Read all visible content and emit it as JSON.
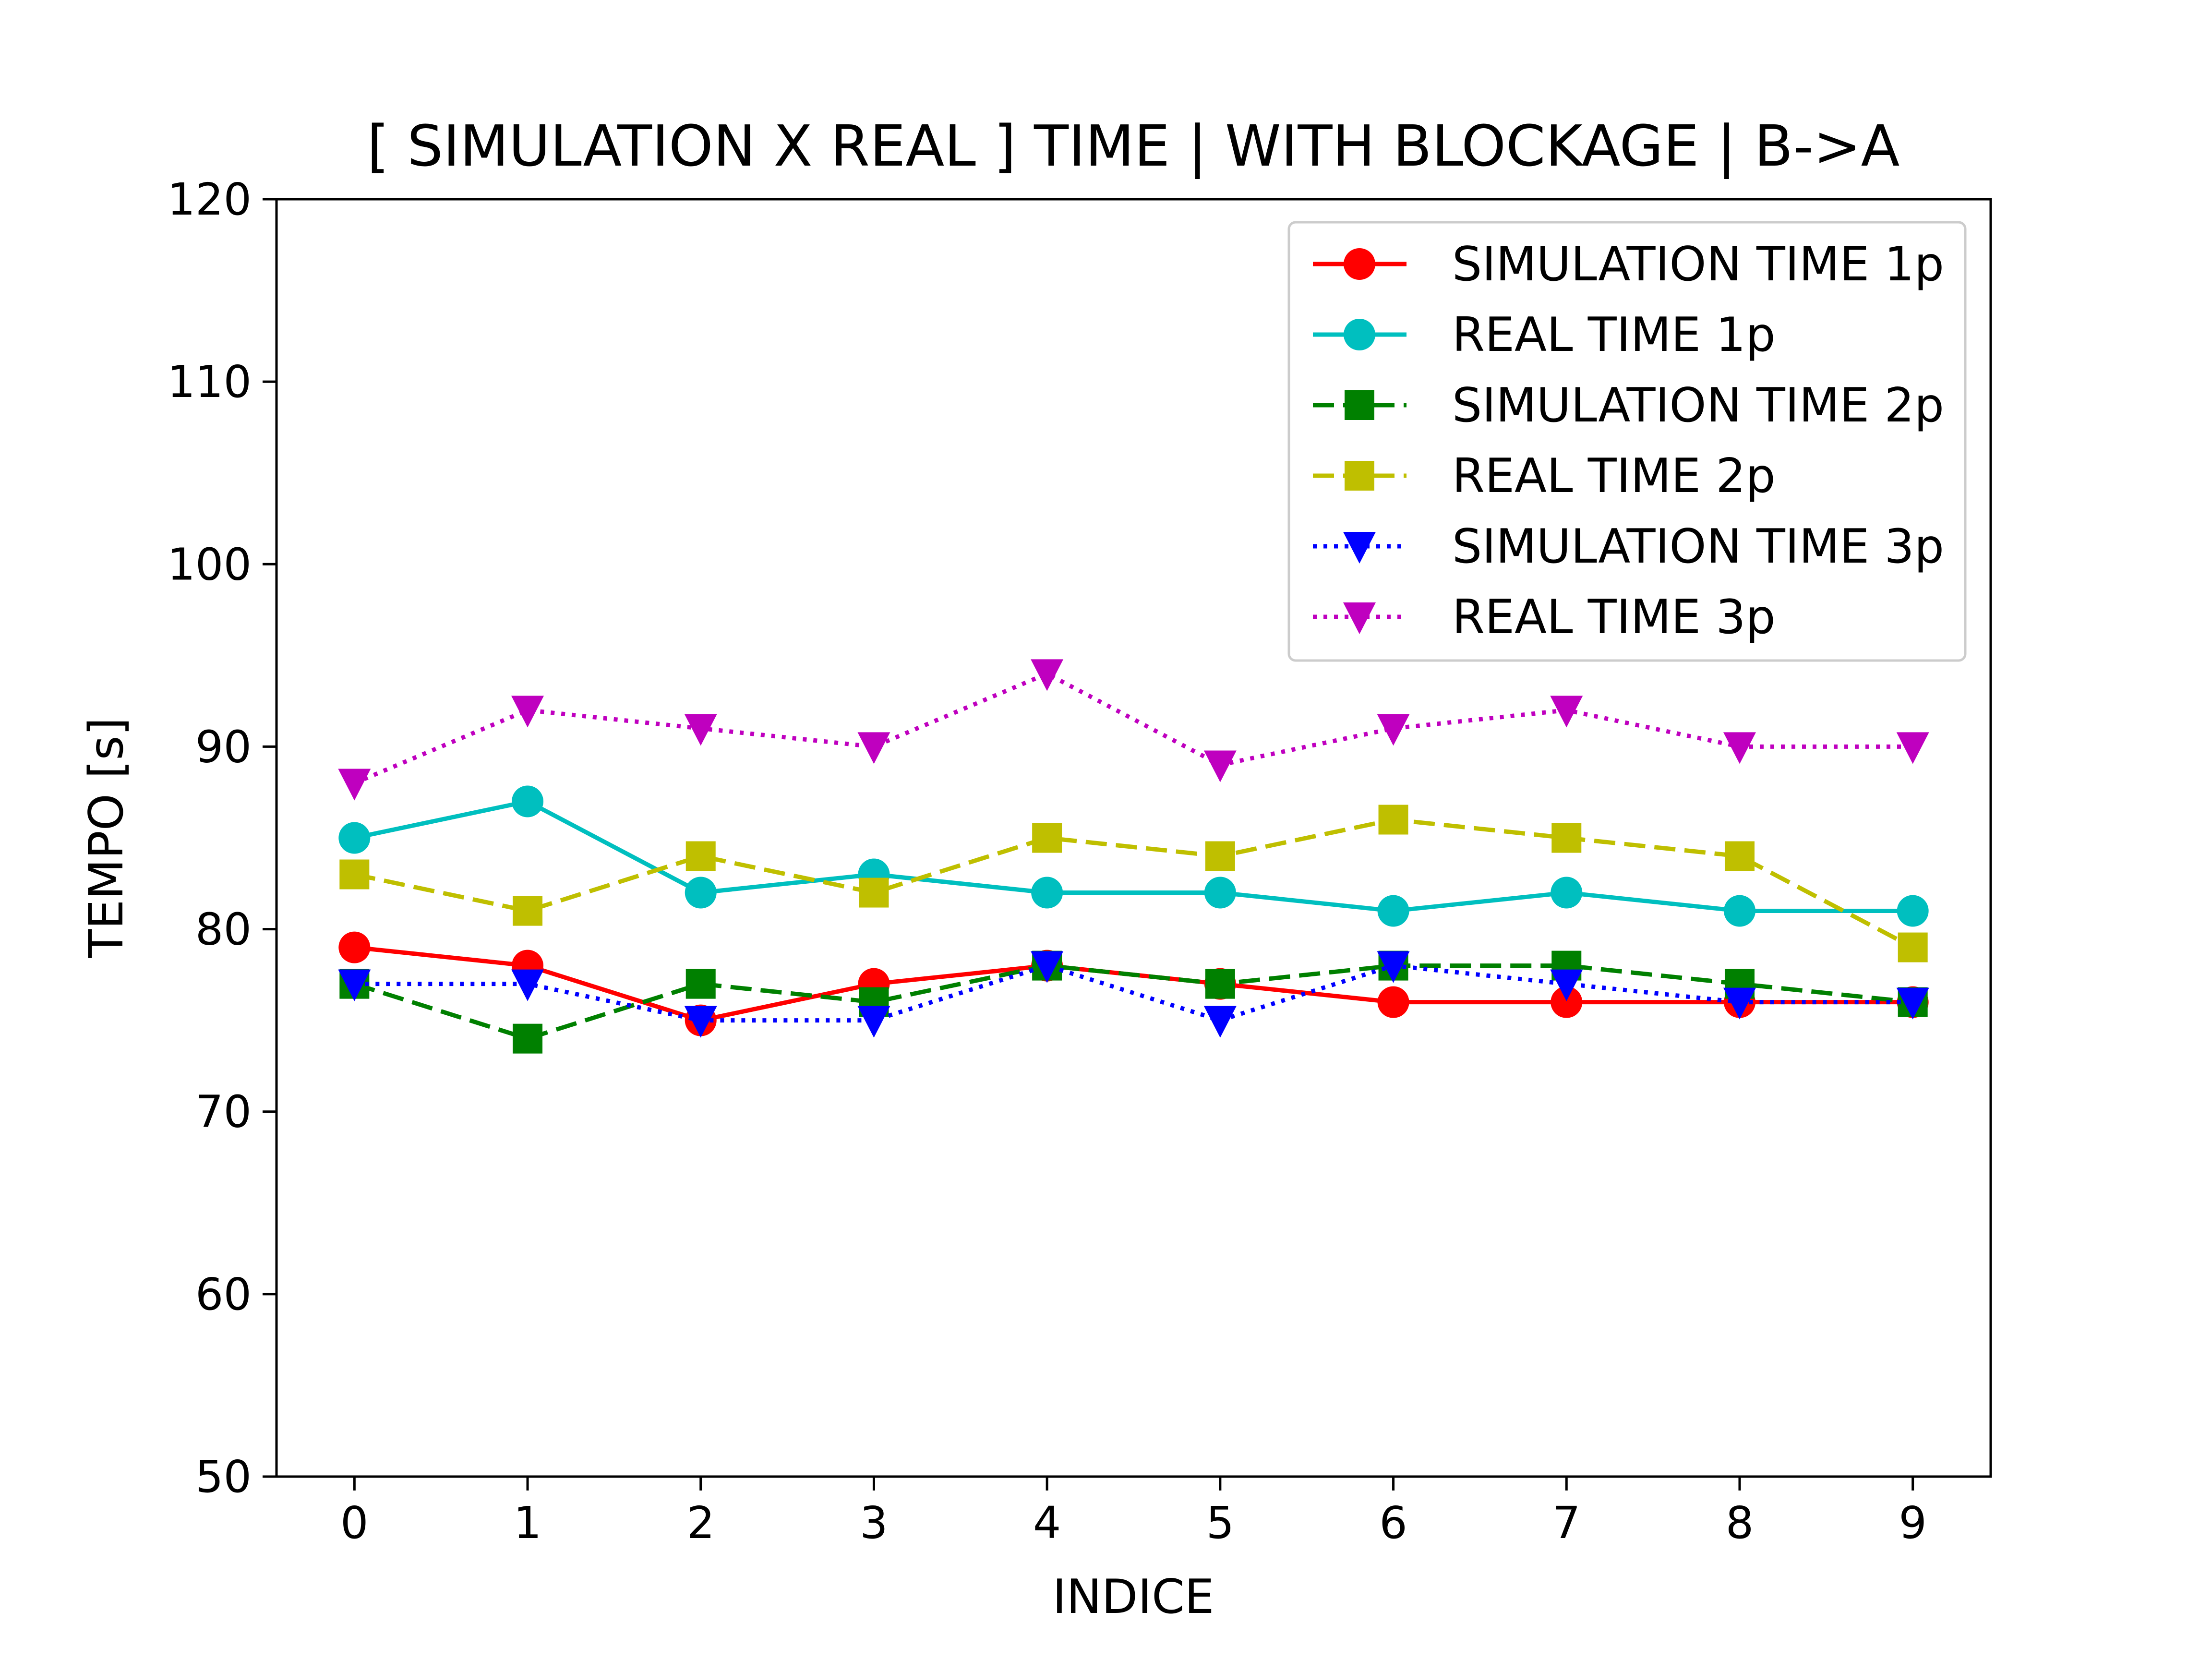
{
  "chart_data": {
    "type": "line",
    "title": "[ SIMULATION X REAL ] TIME | WITH BLOCKAGE | B->A",
    "xlabel": "INDICE",
    "ylabel": "TEMPO [s]",
    "x": [
      0,
      1,
      2,
      3,
      4,
      5,
      6,
      7,
      8,
      9
    ],
    "xticks": [
      "0",
      "1",
      "2",
      "3",
      "4",
      "5",
      "6",
      "7",
      "8",
      "9"
    ],
    "xlim": [
      -0.45,
      9.45
    ],
    "ylim": [
      50,
      120
    ],
    "yticks": [
      "50",
      "60",
      "70",
      "80",
      "90",
      "100",
      "110",
      "120"
    ],
    "grid": false,
    "legend_position": "top-right",
    "series": [
      {
        "name": "SIMULATION TIME 1p",
        "color": "#ff0000",
        "line_style": "solid",
        "marker": "circle",
        "values": [
          79,
          78,
          75,
          77,
          78,
          77,
          76,
          76,
          76,
          76
        ]
      },
      {
        "name": "REAL TIME 1p",
        "color": "#00bfbf",
        "line_style": "solid",
        "marker": "circle",
        "values": [
          85,
          87,
          82,
          83,
          82,
          82,
          81,
          82,
          81,
          81
        ]
      },
      {
        "name": "SIMULATION TIME 2p",
        "color": "#008000",
        "line_style": "dashed",
        "marker": "square",
        "values": [
          77,
          74,
          77,
          76,
          78,
          77,
          78,
          78,
          77,
          76
        ]
      },
      {
        "name": "REAL TIME 2p",
        "color": "#bfbf00",
        "line_style": "dashed",
        "marker": "square",
        "values": [
          83,
          81,
          84,
          82,
          85,
          84,
          86,
          85,
          84,
          79
        ]
      },
      {
        "name": "SIMULATION TIME 3p",
        "color": "#0000ff",
        "line_style": "dotted",
        "marker": "triangle-down",
        "values": [
          77,
          77,
          75,
          75,
          78,
          75,
          78,
          77,
          76,
          76
        ]
      },
      {
        "name": "REAL TIME 3p",
        "color": "#bf00bf",
        "line_style": "dotted",
        "marker": "triangle-down",
        "values": [
          88,
          92,
          91,
          90,
          94,
          89,
          91,
          92,
          90,
          90
        ]
      }
    ]
  }
}
